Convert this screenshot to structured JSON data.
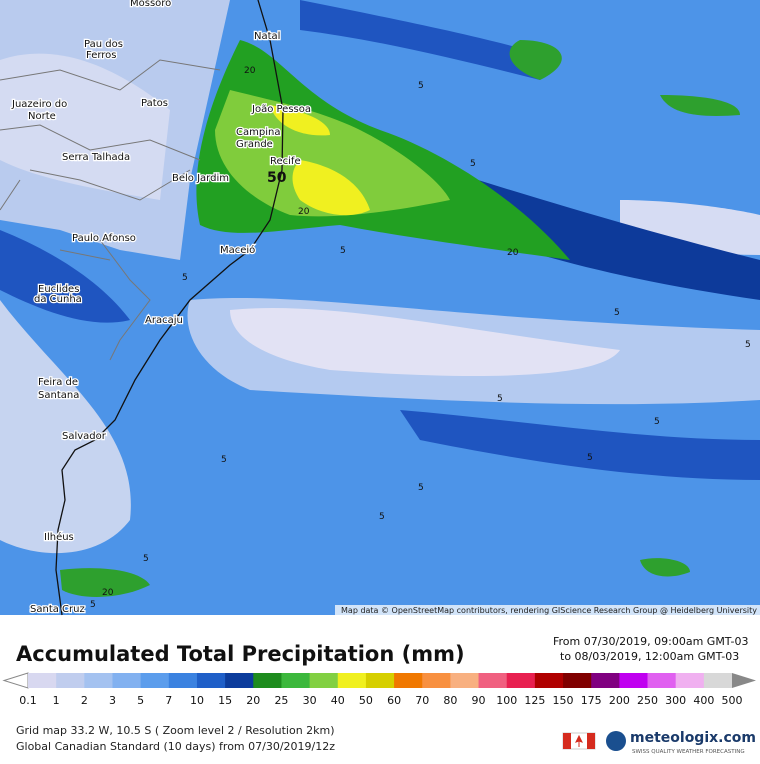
{
  "map": {
    "cities": [
      "Mossoró",
      "Natal",
      "Pau dos",
      "Ferros",
      "Juazeiro do",
      "Norte",
      "Patos",
      "João Pessoa",
      "Campina",
      "Grande",
      "Serra Talhada",
      "Recife",
      "Belo Jardim",
      "Paulo Afonso",
      "Maceió",
      "Euclides",
      "da Cunha",
      "Aracaju",
      "Feira de",
      "Santana",
      "Salvador",
      "Ilhéus",
      "Santa Cruz"
    ],
    "contour_labels": [
      20,
      5,
      5,
      50,
      20,
      5,
      20,
      5,
      5,
      5,
      5,
      5,
      5,
      5,
      5,
      5,
      5,
      20,
      5
    ],
    "attribution": "Map data © OpenStreetMap contributors, rendering GIScience Research Group @ Heidelberg University"
  },
  "header": {
    "title": "Accumulated Total Precipitation (mm)",
    "from": "From 07/30/2019, 09:00am GMT-03",
    "to": "to 08/03/2019, 12:00am GMT-03"
  },
  "colorbar": {
    "levels": [
      0.1,
      1,
      2,
      3,
      5,
      7,
      10,
      15,
      20,
      25,
      30,
      40,
      50,
      60,
      70,
      80,
      90,
      100,
      125,
      150,
      175,
      200,
      250,
      300,
      400,
      500
    ],
    "colors": [
      "#d8d8f0",
      "#c0cdee",
      "#a4c2f0",
      "#82b1f0",
      "#5c9dec",
      "#3b82e0",
      "#1f5fc8",
      "#0c3c9c",
      "#1e8c1e",
      "#3cb83c",
      "#82d042",
      "#f0f020",
      "#d6cf00",
      "#f07800",
      "#f89040",
      "#f8b080",
      "#f06080",
      "#e82050",
      "#b00000",
      "#800000",
      "#800080",
      "#c000f0",
      "#e060f0",
      "#f0b0f0",
      "#d8d8d8"
    ]
  },
  "footer": {
    "grid": "Grid map 33.2 W, 10.5 S ( Zoom level 2 / Resolution 2km)",
    "model": "Global Canadian Standard (10 days) from 07/30/2019/12z"
  },
  "logo": {
    "name": "meteologix.com",
    "tagline": "SWISS QUALITY WEATHER FORECASTING"
  }
}
